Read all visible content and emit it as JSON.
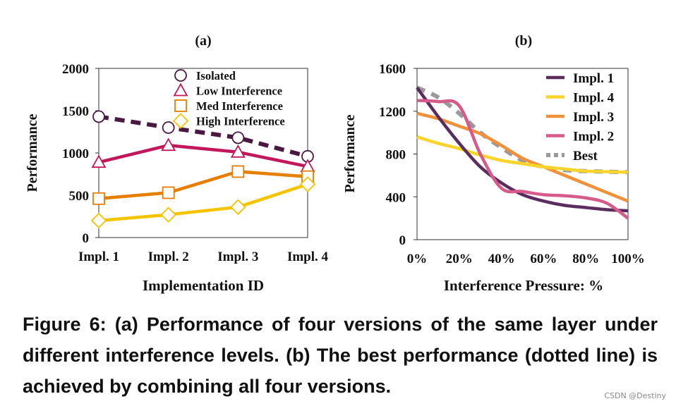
{
  "chart_data": [
    {
      "type": "line",
      "title": "(a)",
      "xlabel": "Implementation ID",
      "ylabel": "Performance",
      "categories": [
        "Impl. 1",
        "Impl. 2",
        "Impl. 3",
        "Impl. 4"
      ],
      "ylim": [
        0,
        2000
      ],
      "yticks": [
        "0",
        "500",
        "1000",
        "1500",
        "2000"
      ],
      "legend_position": "top-right",
      "grid": false,
      "series": [
        {
          "name": "Isolated",
          "values": [
            1430,
            1300,
            1180,
            960
          ],
          "color": "#4a1942",
          "marker": "circle",
          "dashed": true
        },
        {
          "name": "Low Interference",
          "values": [
            890,
            1090,
            1010,
            840
          ],
          "color": "#c2185b",
          "marker": "triangle",
          "dashed": false
        },
        {
          "name": "Med Interference",
          "values": [
            460,
            530,
            780,
            720
          ],
          "color": "#e67e00",
          "marker": "square",
          "dashed": false
        },
        {
          "name": "High Interference",
          "values": [
            200,
            270,
            360,
            630
          ],
          "color": "#f5c400",
          "marker": "diamond",
          "dashed": false
        }
      ]
    },
    {
      "type": "line",
      "title": "(b)",
      "xlabel": "Interference Pressure: %",
      "ylabel": "Performance",
      "x": [
        0,
        10,
        20,
        30,
        40,
        50,
        60,
        70,
        80,
        90,
        100
      ],
      "xticks": [
        "0%",
        "20%",
        "40%",
        "60%",
        "80%",
        "100%"
      ],
      "xlim": [
        0,
        100
      ],
      "ylim": [
        0,
        1600
      ],
      "yticks": [
        "0",
        "400",
        "800",
        "1200",
        "1600"
      ],
      "legend_position": "top-right",
      "grid": false,
      "series": [
        {
          "name": "Impl. 1",
          "values": [
            1420,
            1150,
            900,
            680,
            530,
            420,
            360,
            320,
            300,
            280,
            270
          ],
          "color": "#5b2c5e",
          "dashed": false
        },
        {
          "name": "Impl. 4",
          "values": [
            960,
            900,
            850,
            790,
            740,
            710,
            680,
            660,
            640,
            635,
            630
          ],
          "color": "#fad42a",
          "dashed": false
        },
        {
          "name": "Impl. 3",
          "values": [
            1180,
            1130,
            1060,
            990,
            880,
            760,
            680,
            600,
            520,
            440,
            360
          ],
          "color": "#f0913a",
          "dashed": false
        },
        {
          "name": "Impl. 2",
          "values": [
            1300,
            1290,
            1250,
            800,
            480,
            450,
            420,
            410,
            390,
            340,
            200
          ],
          "color": "#d65a8a",
          "dashed": false
        },
        {
          "name": "Best",
          "values": [
            1420,
            1330,
            1180,
            1000,
            860,
            740,
            680,
            650,
            640,
            635,
            630
          ],
          "color": "#9a9a9a",
          "dashed": true
        }
      ]
    }
  ],
  "caption": "Figure 6: (a) Performance of four versions of the same layer under different interference levels. (b) The best performance (dotted line) is achieved by combining all four versions.",
  "watermark": "CSDN @Destiny"
}
